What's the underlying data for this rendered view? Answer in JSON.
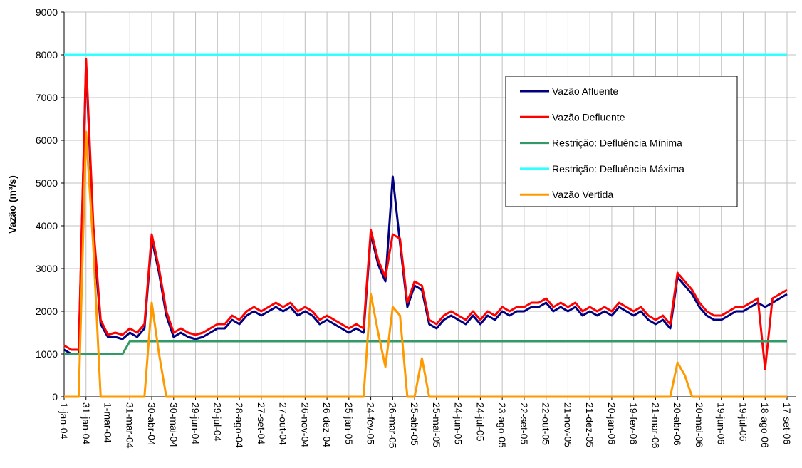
{
  "chart_data": {
    "type": "line",
    "y_label": "Vazão (m³/s)",
    "categories": [
      "1-jan-04",
      null,
      null,
      "31-jan-04",
      null,
      null,
      "1-mar-04",
      null,
      null,
      "31-mar-04",
      null,
      null,
      "30-abr-04",
      null,
      null,
      "30-mai-04",
      null,
      null,
      "29-jun-04",
      null,
      null,
      "29-jul-04",
      null,
      null,
      "28-ago-04",
      null,
      null,
      "27-set-04",
      null,
      null,
      "27-out-04",
      null,
      null,
      "26-nov-04",
      null,
      null,
      "26-dez-04",
      null,
      null,
      "25-jan-05",
      null,
      null,
      "24-fev-05",
      null,
      null,
      "26-mar-05",
      null,
      null,
      "25-abr-05",
      null,
      null,
      "25-mai-05",
      null,
      null,
      "24-jun-05",
      null,
      null,
      "24-jul-05",
      null,
      null,
      "23-ago-05",
      null,
      null,
      "22-set-05",
      null,
      null,
      "22-out-05",
      null,
      null,
      "21-nov-05",
      null,
      null,
      "21-dez-05",
      null,
      null,
      "20-jan-06",
      null,
      null,
      "19-fev-06",
      null,
      null,
      "21-mar-06",
      null,
      null,
      "20-abr-06",
      null,
      null,
      "20-mai-06",
      null,
      null,
      "19-jun-06",
      null,
      null,
      "19-jul-06",
      null,
      null,
      "18-ago-06",
      null,
      null,
      "17-set-06"
    ],
    "series": [
      {
        "name": "Vazão Afluente",
        "color": "#000080",
        "values": [
          1100,
          1000,
          1000,
          7800,
          3800,
          1700,
          1400,
          1400,
          1350,
          1500,
          1400,
          1600,
          3700,
          2900,
          1900,
          1400,
          1500,
          1400,
          1350,
          1400,
          1500,
          1600,
          1600,
          1800,
          1700,
          1900,
          2000,
          1900,
          2000,
          2100,
          2000,
          2100,
          1900,
          2000,
          1900,
          1700,
          1800,
          1700,
          1600,
          1500,
          1600,
          1500,
          3800,
          3100,
          2700,
          5150,
          3600,
          2100,
          2600,
          2500,
          1700,
          1600,
          1800,
          1900,
          1800,
          1700,
          1900,
          1700,
          1900,
          1800,
          2000,
          1900,
          2000,
          2000,
          2100,
          2100,
          2200,
          2000,
          2100,
          2000,
          2100,
          1900,
          2000,
          1900,
          2000,
          1900,
          2100,
          2000,
          1900,
          2000,
          1800,
          1700,
          1800,
          1600,
          2800,
          2600,
          2400,
          2100,
          1900,
          1800,
          1800,
          1900,
          2000,
          2000,
          2100,
          2200,
          2100,
          2200,
          2300,
          2400
        ]
      },
      {
        "name": "Vazão Defluente",
        "color": "#ff0000",
        "values": [
          1200,
          1100,
          1100,
          7900,
          4000,
          1800,
          1450,
          1500,
          1450,
          1600,
          1500,
          1700,
          3800,
          3000,
          2000,
          1500,
          1600,
          1500,
          1450,
          1500,
          1600,
          1700,
          1700,
          1900,
          1800,
          2000,
          2100,
          2000,
          2100,
          2200,
          2100,
          2200,
          2000,
          2100,
          2000,
          1800,
          1900,
          1800,
          1700,
          1600,
          1700,
          1600,
          3900,
          3200,
          2800,
          3800,
          3700,
          2200,
          2700,
          2600,
          1800,
          1700,
          1900,
          2000,
          1900,
          1800,
          2000,
          1800,
          2000,
          1900,
          2100,
          2000,
          2100,
          2100,
          2200,
          2200,
          2300,
          2100,
          2200,
          2100,
          2200,
          2000,
          2100,
          2000,
          2100,
          2000,
          2200,
          2100,
          2000,
          2100,
          1900,
          1800,
          1900,
          1700,
          2900,
          2700,
          2500,
          2200,
          2000,
          1900,
          1900,
          2000,
          2100,
          2100,
          2200,
          2300,
          650,
          2300,
          2400,
          2500
        ]
      },
      {
        "name": "Restrição: Defluência Mínima",
        "color": "#339966",
        "values": [
          1000,
          1000,
          1000,
          1000,
          1000,
          1000,
          1000,
          1000,
          1000,
          1300,
          1300,
          1300,
          1300,
          1300,
          1300,
          1300,
          1300,
          1300,
          1300,
          1300,
          1300,
          1300,
          1300,
          1300,
          1300,
          1300,
          1300,
          1300,
          1300,
          1300,
          1300,
          1300,
          1300,
          1300,
          1300,
          1300,
          1300,
          1300,
          1300,
          1300,
          1300,
          1300,
          1300,
          1300,
          1300,
          1300,
          1300,
          1300,
          1300,
          1300,
          1300,
          1300,
          1300,
          1300,
          1300,
          1300,
          1300,
          1300,
          1300,
          1300,
          1300,
          1300,
          1300,
          1300,
          1300,
          1300,
          1300,
          1300,
          1300,
          1300,
          1300,
          1300,
          1300,
          1300,
          1300,
          1300,
          1300,
          1300,
          1300,
          1300,
          1300,
          1300,
          1300,
          1300,
          1300,
          1300,
          1300,
          1300,
          1300,
          1300,
          1300,
          1300,
          1300,
          1300,
          1300,
          1300,
          1300,
          1300,
          1300,
          1300
        ]
      },
      {
        "name": "Restrição: Defluência Máxima",
        "color": "#33ffff",
        "values": [
          8000,
          8000,
          8000,
          8000,
          8000,
          8000,
          8000,
          8000,
          8000,
          8000,
          8000,
          8000,
          8000,
          8000,
          8000,
          8000,
          8000,
          8000,
          8000,
          8000,
          8000,
          8000,
          8000,
          8000,
          8000,
          8000,
          8000,
          8000,
          8000,
          8000,
          8000,
          8000,
          8000,
          8000,
          8000,
          8000,
          8000,
          8000,
          8000,
          8000,
          8000,
          8000,
          8000,
          8000,
          8000,
          8000,
          8000,
          8000,
          8000,
          8000,
          8000,
          8000,
          8000,
          8000,
          8000,
          8000,
          8000,
          8000,
          8000,
          8000,
          8000,
          8000,
          8000,
          8000,
          8000,
          8000,
          8000,
          8000,
          8000,
          8000,
          8000,
          8000,
          8000,
          8000,
          8000,
          8000,
          8000,
          8000,
          8000,
          8000,
          8000,
          8000,
          8000,
          8000,
          8000,
          8000,
          8000,
          8000,
          8000,
          8000,
          8000,
          8000,
          8000,
          8000,
          8000,
          8000,
          8000,
          8000,
          8000,
          8000
        ]
      },
      {
        "name": "Vazão Vertida",
        "color": "#ff9900",
        "values": [
          0,
          0,
          0,
          6200,
          3500,
          0,
          0,
          0,
          0,
          0,
          0,
          0,
          2200,
          1000,
          0,
          0,
          0,
          0,
          0,
          0,
          0,
          0,
          0,
          0,
          0,
          0,
          0,
          0,
          0,
          0,
          0,
          0,
          0,
          0,
          0,
          0,
          0,
          0,
          0,
          0,
          0,
          0,
          2400,
          1500,
          700,
          2100,
          1900,
          0,
          0,
          900,
          0,
          0,
          0,
          0,
          0,
          0,
          0,
          0,
          0,
          0,
          0,
          0,
          0,
          0,
          0,
          0,
          0,
          0,
          0,
          0,
          0,
          0,
          0,
          0,
          0,
          0,
          0,
          0,
          0,
          0,
          0,
          0,
          0,
          0,
          800,
          500,
          0,
          0,
          0,
          0,
          0,
          0,
          0,
          0,
          0,
          0,
          0,
          0,
          0,
          0
        ]
      }
    ],
    "ylim": [
      0,
      9000
    ],
    "yticks": [
      0,
      1000,
      2000,
      3000,
      4000,
      5000,
      6000,
      7000,
      8000,
      9000
    ],
    "grid": true
  }
}
